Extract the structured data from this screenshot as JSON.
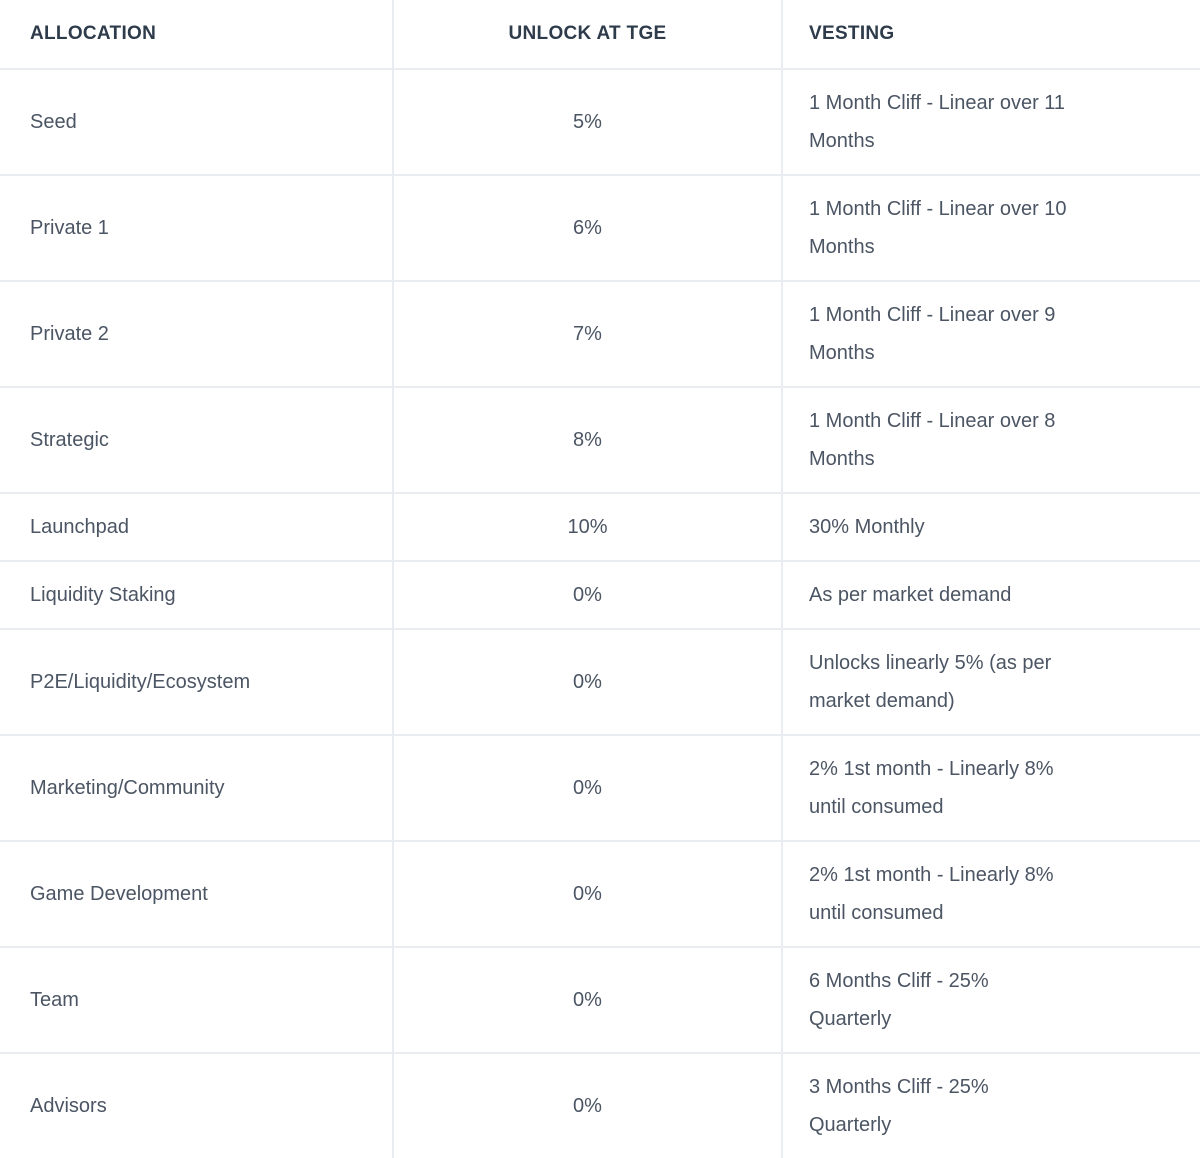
{
  "table": {
    "name": "token-allocation-vesting-table",
    "headers": {
      "allocation": "ALLOCATION",
      "unlock_at_tge": "UNLOCK AT TGE",
      "vesting": "VESTING"
    },
    "rows": [
      {
        "allocation": "Seed",
        "unlock_at_tge": "5%",
        "vesting": "1 Month Cliff - Linear over 11 Months",
        "vesting_lines": [
          "1 Month Cliff - Linear over 11",
          "Months"
        ]
      },
      {
        "allocation": "Private 1",
        "unlock_at_tge": "6%",
        "vesting": "1 Month Cliff - Linear over 10 Months",
        "vesting_lines": [
          "1 Month Cliff - Linear over 10",
          "Months"
        ]
      },
      {
        "allocation": "Private 2",
        "unlock_at_tge": "7%",
        "vesting": "1 Month Cliff - Linear over 9 Months",
        "vesting_lines": [
          "1 Month Cliff - Linear over 9",
          "Months"
        ]
      },
      {
        "allocation": "Strategic",
        "unlock_at_tge": "8%",
        "vesting": "1 Month Cliff - Linear over 8 Months",
        "vesting_lines": [
          "1 Month Cliff - Linear over 8",
          "Months"
        ]
      },
      {
        "allocation": "Launchpad",
        "unlock_at_tge": "10%",
        "vesting": "30% Monthly",
        "vesting_lines": [
          "30% Monthly"
        ]
      },
      {
        "allocation": "Liquidity Staking",
        "unlock_at_tge": "0%",
        "vesting": "As per market demand",
        "vesting_lines": [
          "As per market demand"
        ]
      },
      {
        "allocation": "P2E/Liquidity/Ecosystem",
        "unlock_at_tge": "0%",
        "vesting": "Unlocks linearly 5% (as per market demand)",
        "vesting_lines": [
          "Unlocks linearly 5% (as per",
          "market demand)"
        ]
      },
      {
        "allocation": "Marketing/Community",
        "unlock_at_tge": "0%",
        "vesting": "2% 1st month - Linearly 8% until consumed",
        "vesting_lines": [
          "2% 1st month - Linearly 8%",
          "until consumed"
        ]
      },
      {
        "allocation": "Game Development",
        "unlock_at_tge": "0%",
        "vesting": "2% 1st month - Linearly 8% until consumed",
        "vesting_lines": [
          "2% 1st month - Linearly 8%",
          "until consumed"
        ]
      },
      {
        "allocation": "Team",
        "unlock_at_tge": "0%",
        "vesting": "6 Months Cliff - 25% Quarterly",
        "vesting_lines": [
          "6 Months Cliff - 25%",
          "Quarterly"
        ]
      },
      {
        "allocation": "Advisors",
        "unlock_at_tge": "0%",
        "vesting": "3 Months Cliff - 25% Quarterly",
        "vesting_lines": [
          "3 Months Cliff - 25%",
          "Quarterly"
        ]
      }
    ],
    "colors": {
      "header_text": "#2e3b4a",
      "body_text": "#4b5563",
      "divider": "#e9edf2",
      "background": "#ffffff"
    }
  }
}
